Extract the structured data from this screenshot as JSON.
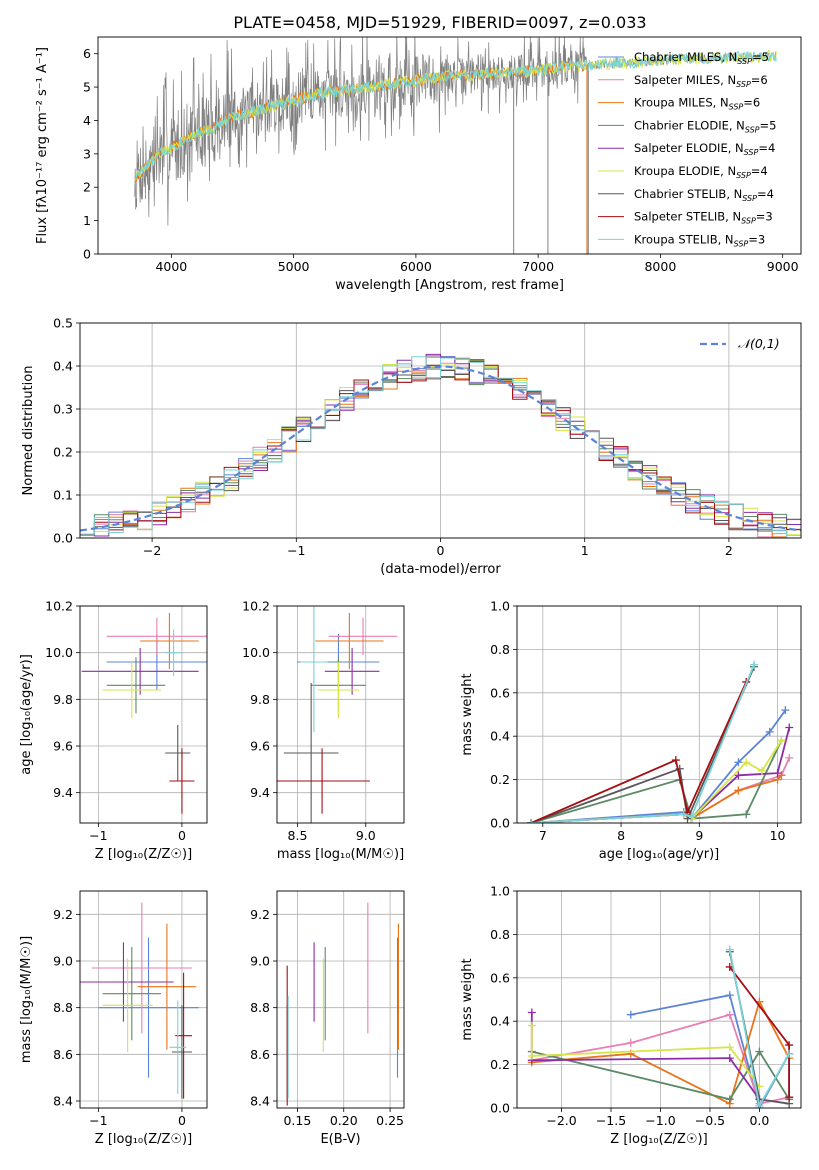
{
  "figure_title": "PLATE=0458, MJD=51929, FIBERID=0097, z=0.033",
  "colors": {
    "Chabrier MILES": "#5b84d8",
    "Salpeter MILES": "#e77fb4",
    "Kroupa MILES": "#e8751a",
    "Chabrier ELODIE": "#5d8a66",
    "Salpeter ELODIE": "#8e2ca8",
    "Kroupa ELODIE": "#d6e548",
    "Chabrier STELIB": "#585858",
    "Salpeter STELIB": "#a50d12",
    "Kroupa STELIB": "#7ad3d6",
    "data": "#7f7f7f",
    "normal": "#5b84d8"
  },
  "chart_data": [
    {
      "id": "spectrum",
      "type": "line",
      "title": "PLATE=0458, MJD=51929, FIBERID=0097, z=0.033",
      "xlabel": "wavelength [Angstrom, rest frame]",
      "ylabel": "Flux [fλ10⁻¹⁷ erg cm⁻² s⁻¹ A⁻¹]",
      "xlim": [
        3400,
        9150
      ],
      "ylim": [
        0,
        6.5
      ],
      "xticks": [
        4000,
        5000,
        6000,
        7000,
        8000,
        9000
      ],
      "yticks": [
        0,
        1,
        2,
        3,
        4,
        5,
        6
      ],
      "grid": false,
      "legend_position": "top-right",
      "legend": [
        {
          "name": "Chabrier MILES",
          "nssp": "5"
        },
        {
          "name": "Salpeter MILES",
          "nssp": "6"
        },
        {
          "name": "Kroupa MILES",
          "nssp": "6"
        },
        {
          "name": "Chabrier ELODIE",
          "nssp": "5"
        },
        {
          "name": "Salpeter ELODIE",
          "nssp": "4"
        },
        {
          "name": "Kroupa ELODIE",
          "nssp": "4"
        },
        {
          "name": "Chabrier STELIB",
          "nssp": "4"
        },
        {
          "name": "Salpeter STELIB",
          "nssp": "3"
        },
        {
          "name": "Kroupa STELIB",
          "nssp": "3"
        }
      ],
      "model_curve": {
        "x": [
          3700,
          3800,
          3900,
          4000,
          4100,
          4200,
          4300,
          4400,
          4500,
          4600,
          4700,
          4800,
          4900,
          5000,
          5200,
          5400,
          5600,
          5800,
          6000,
          6200,
          6400,
          6600,
          6800,
          7000,
          7200,
          7400,
          7600,
          7800,
          8000,
          8200,
          8400,
          8600,
          8800,
          9000
        ],
        "y": [
          2.3,
          2.6,
          3.0,
          3.2,
          3.4,
          3.6,
          3.7,
          3.9,
          4.1,
          4.2,
          4.3,
          4.4,
          4.5,
          4.6,
          4.8,
          4.9,
          5.0,
          5.1,
          5.2,
          5.3,
          5.35,
          5.4,
          5.45,
          5.5,
          5.6,
          5.65,
          5.7,
          5.75,
          5.8,
          5.85,
          5.85,
          5.9,
          5.9,
          5.95
        ]
      }
    },
    {
      "id": "residuals",
      "type": "line",
      "xlabel": "(data-model)/error",
      "ylabel": "Normed distribution",
      "xlim": [
        -2.5,
        2.5
      ],
      "ylim": [
        0,
        0.5
      ],
      "xticks": [
        -2,
        -1,
        0,
        1,
        2
      ],
      "yticks": [
        0.0,
        0.1,
        0.2,
        0.3,
        0.4,
        0.5
      ],
      "grid": true,
      "legend_position": "top-right",
      "normal_label": "𝒩(0,1)"
    },
    {
      "id": "age-vs-Z",
      "type": "scatter",
      "xlabel": "Z [log₁₀(Z/Z☉)]",
      "ylabel": "age  [log₁₀(age/yr)]",
      "xlim": [
        -1.22,
        0.3
      ],
      "ylim": [
        9.27,
        10.2
      ],
      "xticks": [
        -1,
        0
      ],
      "yticks": [
        9.4,
        9.6,
        9.8,
        10.0,
        10.2
      ],
      "grid": true,
      "points": [
        {
          "model": "Chabrier MILES",
          "x": -0.3,
          "y": 9.96,
          "xerr": 0.6,
          "yerr": 0.12
        },
        {
          "model": "Salpeter MILES",
          "x": -0.3,
          "y": 10.07,
          "xerr": 0.6,
          "yerr": 0.08
        },
        {
          "model": "Kroupa MILES",
          "x": -0.15,
          "y": 10.05,
          "xerr": 0.35,
          "yerr": 0.12
        },
        {
          "model": "Chabrier ELODIE",
          "x": -0.55,
          "y": 9.86,
          "xerr": 0.35,
          "yerr": 0.12
        },
        {
          "model": "Salpeter ELODIE",
          "x": -0.5,
          "y": 9.92,
          "xerr": 0.7,
          "yerr": 0.1
        },
        {
          "model": "Kroupa ELODIE",
          "x": -0.6,
          "y": 9.84,
          "xerr": 0.35,
          "yerr": 0.12
        },
        {
          "model": "Chabrier STELIB",
          "x": -0.05,
          "y": 9.57,
          "xerr": 0.15,
          "yerr": 0.12
        },
        {
          "model": "Salpeter STELIB",
          "x": 0.0,
          "y": 9.45,
          "xerr": 0.15,
          "yerr": 0.14
        },
        {
          "model": "Kroupa STELIB",
          "x": -0.1,
          "y": 10.0,
          "xerr": 0.1,
          "yerr": 0.1
        }
      ]
    },
    {
      "id": "age-vs-mass",
      "type": "scatter",
      "xlabel": "mass [log₁₀(M/M☉)]",
      "ylabel": "",
      "xlim": [
        8.35,
        9.28
      ],
      "ylim": [
        9.27,
        10.2
      ],
      "xticks": [
        8.5,
        9.0
      ],
      "yticks": [
        9.4,
        9.6,
        9.8,
        10.0,
        10.2
      ],
      "grid": true,
      "points": [
        {
          "model": "Chabrier MILES",
          "x": 8.8,
          "y": 9.96,
          "xerr": 0.3,
          "yerr": 0.12
        },
        {
          "model": "Salpeter MILES",
          "x": 8.98,
          "y": 10.07,
          "xerr": 0.25,
          "yerr": 0.08
        },
        {
          "model": "Kroupa MILES",
          "x": 8.88,
          "y": 10.05,
          "xerr": 0.25,
          "yerr": 0.12
        },
        {
          "model": "Chabrier ELODIE",
          "x": 8.8,
          "y": 9.86,
          "xerr": 0.2,
          "yerr": 0.12
        },
        {
          "model": "Salpeter ELODIE",
          "x": 8.9,
          "y": 9.92,
          "xerr": 0.2,
          "yerr": 0.1
        },
        {
          "model": "Kroupa ELODIE",
          "x": 8.8,
          "y": 9.84,
          "xerr": 0.15,
          "yerr": 0.12
        },
        {
          "model": "Chabrier STELIB",
          "x": 8.6,
          "y": 9.57,
          "xerr": 0.2,
          "yerr": 0.3
        },
        {
          "model": "Salpeter STELIB",
          "x": 8.68,
          "y": 9.45,
          "xerr": 0.35,
          "yerr": 0.14
        },
        {
          "model": "Kroupa STELIB",
          "x": 8.62,
          "y": 9.96,
          "xerr": 0.1,
          "yerr": 0.3
        }
      ]
    },
    {
      "id": "weight-vs-age",
      "type": "line",
      "xlabel": "age  [log₁₀(age/yr)]",
      "ylabel": "mass weight",
      "xlim": [
        6.67,
        10.3
      ],
      "ylim": [
        0,
        1.0
      ],
      "xticks": [
        7,
        8,
        9,
        10
      ],
      "yticks": [
        0.0,
        0.2,
        0.4,
        0.6,
        0.8,
        1.0
      ],
      "grid": true,
      "series": [
        {
          "name": "Chabrier MILES",
          "x": [
            6.85,
            8.8,
            8.9,
            9.5,
            9.9,
            10.1
          ],
          "y": [
            0.0,
            0.05,
            0.02,
            0.28,
            0.42,
            0.52
          ]
        },
        {
          "name": "Salpeter MILES",
          "x": [
            6.85,
            8.8,
            8.9,
            9.5,
            10.05,
            10.15
          ],
          "y": [
            0.0,
            0.04,
            0.02,
            0.15,
            0.22,
            0.3
          ]
        },
        {
          "name": "Kroupa MILES",
          "x": [
            6.85,
            8.8,
            8.9,
            9.5,
            10.0,
            10.05
          ],
          "y": [
            0.0,
            0.04,
            0.02,
            0.15,
            0.2,
            0.22
          ]
        },
        {
          "name": "Chabrier ELODIE",
          "x": [
            6.85,
            8.75,
            8.9,
            9.6,
            10.05
          ],
          "y": [
            0.0,
            0.2,
            0.02,
            0.04,
            0.38
          ]
        },
        {
          "name": "Salpeter ELODIE",
          "x": [
            6.85,
            8.8,
            8.9,
            9.5,
            10.0,
            10.15
          ],
          "y": [
            0.0,
            0.04,
            0.02,
            0.22,
            0.23,
            0.44
          ]
        },
        {
          "name": "Kroupa ELODIE",
          "x": [
            6.85,
            8.8,
            8.9,
            9.6,
            9.8,
            10.05
          ],
          "y": [
            0.0,
            0.04,
            0.02,
            0.28,
            0.24,
            0.38
          ]
        },
        {
          "name": "Chabrier STELIB",
          "x": [
            6.85,
            8.75,
            8.85,
            9.7
          ],
          "y": [
            0.0,
            0.25,
            0.02,
            0.72
          ]
        },
        {
          "name": "Salpeter STELIB",
          "x": [
            6.85,
            8.7,
            8.85,
            9.6
          ],
          "y": [
            0.0,
            0.29,
            0.05,
            0.65
          ]
        },
        {
          "name": "Kroupa STELIB",
          "x": [
            6.85,
            8.8,
            8.9,
            9.7
          ],
          "y": [
            0.0,
            0.04,
            0.03,
            0.73
          ]
        }
      ]
    },
    {
      "id": "mass-vs-Z",
      "type": "scatter",
      "xlabel": "Z [log₁₀(Z/Z☉)]",
      "ylabel": "mass [log₁₀(M/M☉)]",
      "xlim": [
        -1.22,
        0.3
      ],
      "ylim": [
        8.37,
        9.3
      ],
      "xticks": [
        -1,
        0
      ],
      "yticks": [
        8.4,
        8.6,
        8.8,
        9.0,
        9.2
      ],
      "grid": true,
      "points": [
        {
          "model": "Chabrier MILES",
          "x": -0.4,
          "y": 8.8,
          "xerr": 0.6,
          "yerr": 0.3
        },
        {
          "model": "Salpeter MILES",
          "x": -0.48,
          "y": 8.97,
          "xerr": 0.6,
          "yerr": 0.28
        },
        {
          "model": "Kroupa MILES",
          "x": -0.18,
          "y": 8.89,
          "xerr": 0.35,
          "yerr": 0.27
        },
        {
          "model": "Chabrier ELODIE",
          "x": -0.6,
          "y": 8.86,
          "xerr": 0.35,
          "yerr": 0.2
        },
        {
          "model": "Salpeter ELODIE",
          "x": -0.7,
          "y": 8.91,
          "xerr": 0.6,
          "yerr": 0.17
        },
        {
          "model": "Kroupa ELODIE",
          "x": -0.65,
          "y": 8.81,
          "xerr": 0.3,
          "yerr": 0.2
        },
        {
          "model": "Chabrier STELIB",
          "x": 0.0,
          "y": 8.61,
          "xerr": 0.12,
          "yerr": 0.2
        },
        {
          "model": "Salpeter STELIB",
          "x": 0.02,
          "y": 8.68,
          "xerr": 0.1,
          "yerr": 0.27
        },
        {
          "model": "Kroupa STELIB",
          "x": -0.05,
          "y": 8.63,
          "xerr": 0.1,
          "yerr": 0.2
        }
      ]
    },
    {
      "id": "mass-vs-EBV",
      "type": "scatter",
      "xlabel": "E(B-V)",
      "ylabel": "",
      "xlim": [
        0.128,
        0.265
      ],
      "ylim": [
        8.37,
        9.3
      ],
      "xticks": [
        0.15,
        0.2,
        0.25
      ],
      "yticks": [
        8.4,
        8.6,
        8.8,
        9.0,
        9.2
      ],
      "grid": true,
      "points": [
        {
          "model": "Chabrier MILES",
          "x": 0.258,
          "y": 8.8,
          "xerr": 0,
          "yerr": 0.3
        },
        {
          "model": "Salpeter MILES",
          "x": 0.226,
          "y": 8.97,
          "xerr": 0,
          "yerr": 0.28
        },
        {
          "model": "Kroupa MILES",
          "x": 0.259,
          "y": 8.89,
          "xerr": 0,
          "yerr": 0.27
        },
        {
          "model": "Chabrier ELODIE",
          "x": 0.18,
          "y": 8.86,
          "xerr": 0,
          "yerr": 0.2
        },
        {
          "model": "Salpeter ELODIE",
          "x": 0.168,
          "y": 8.91,
          "xerr": 0,
          "yerr": 0.17
        },
        {
          "model": "Kroupa ELODIE",
          "x": 0.178,
          "y": 8.81,
          "xerr": 0,
          "yerr": 0.2
        },
        {
          "model": "Chabrier STELIB",
          "x": 0.139,
          "y": 8.61,
          "xerr": 0,
          "yerr": 0.2
        },
        {
          "model": "Salpeter STELIB",
          "x": 0.139,
          "y": 8.68,
          "xerr": 0,
          "yerr": 0.3
        },
        {
          "model": "Kroupa STELIB",
          "x": 0.14,
          "y": 8.63,
          "xerr": 0,
          "yerr": 0.22
        }
      ]
    },
    {
      "id": "weight-vs-Z",
      "type": "line",
      "xlabel": "Z [log₁₀(Z/Z☉)]",
      "ylabel": "mass weight",
      "xlim": [
        -2.45,
        0.42
      ],
      "ylim": [
        0,
        1.0
      ],
      "xticks": [
        -2.0,
        -1.5,
        -1.0,
        -0.5,
        0.0
      ],
      "yticks": [
        0.0,
        0.2,
        0.4,
        0.6,
        0.8,
        1.0
      ],
      "grid": true,
      "series": [
        {
          "name": "Chabrier MILES",
          "x": [
            -1.3,
            -0.3,
            0.0,
            0.3,
            0.3
          ],
          "y": [
            0.43,
            0.52,
            0.0,
            0.25,
            0.05
          ]
        },
        {
          "name": "Salpeter MILES",
          "x": [
            -2.3,
            -1.3,
            -0.3,
            0.0,
            0.3
          ],
          "y": [
            0.22,
            0.3,
            0.43,
            0.02,
            0.05
          ]
        },
        {
          "name": "Kroupa MILES",
          "x": [
            -2.3,
            -1.3,
            -0.3,
            0.0,
            0.3
          ],
          "y": [
            0.21,
            0.25,
            0.02,
            0.49,
            0.23
          ]
        },
        {
          "name": "Chabrier ELODIE",
          "x": [
            -2.3,
            -0.3,
            0.0,
            0.3
          ],
          "y": [
            0.26,
            0.04,
            0.26,
            0.04
          ]
        },
        {
          "name": "Salpeter ELODIE",
          "x": [
            -2.3,
            -2.3,
            -0.3,
            0.0
          ],
          "y": [
            0.44,
            0.22,
            0.23,
            0.04
          ]
        },
        {
          "name": "Kroupa ELODIE",
          "x": [
            -2.3,
            -2.3,
            -0.3,
            0.0
          ],
          "y": [
            0.38,
            0.24,
            0.28,
            0.1
          ]
        },
        {
          "name": "Chabrier STELIB",
          "x": [
            -0.3,
            0.0,
            0.3
          ],
          "y": [
            0.72,
            0.04,
            0.02
          ]
        },
        {
          "name": "Salpeter STELIB",
          "x": [
            -0.3,
            0.3,
            0.3
          ],
          "y": [
            0.65,
            0.29,
            0.05
          ]
        },
        {
          "name": "Kroupa STELIB",
          "x": [
            -0.3,
            0.0,
            0.3
          ],
          "y": [
            0.73,
            0.01,
            0.25
          ]
        }
      ]
    }
  ]
}
